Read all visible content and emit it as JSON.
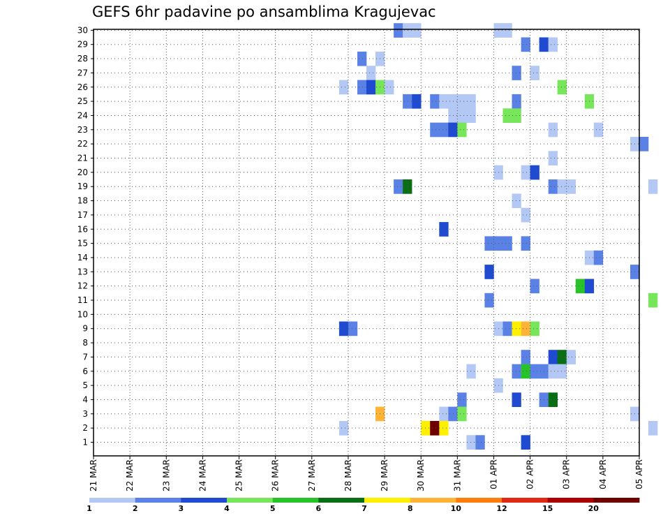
{
  "chart_data": {
    "type": "heatmap",
    "title": "GEFS 6hr padavine po ansamblima Kragujevac",
    "x_labels": [
      "21 MAR",
      "22 MAR",
      "23 MAR",
      "24 MAR",
      "25 MAR",
      "26 MAR",
      "27 MAR",
      "28 MAR",
      "29 MAR",
      "30 MAR",
      "31 MAR",
      "01 APR",
      "02 APR",
      "03 APR",
      "04 APR",
      "05 APR"
    ],
    "y_labels": [
      "1",
      "2",
      "3",
      "4",
      "5",
      "6",
      "7",
      "8",
      "9",
      "10",
      "11",
      "12",
      "13",
      "14",
      "15",
      "16",
      "17",
      "18",
      "19",
      "20",
      "21",
      "22",
      "23",
      "24",
      "25",
      "26",
      "27",
      "28",
      "29",
      "30"
    ],
    "grid": true,
    "legend": {
      "labels": [
        "1",
        "2",
        "3",
        "4",
        "5",
        "6",
        "7",
        "8",
        "10",
        "12",
        "15",
        "20"
      ],
      "colors": [
        "#b4c8f5",
        "#5a82e6",
        "#1e4bd2",
        "#78e65a",
        "#28c328",
        "#0a6e14",
        "#fff000",
        "#ffb437",
        "#ff7d0a",
        "#e12814",
        "#aa0000",
        "#6e0000"
      ]
    },
    "cells": [
      {
        "day": 8.25,
        "member": 30,
        "value": 2
      },
      {
        "day": 8.5,
        "member": 30,
        "value": 1
      },
      {
        "day": 8.75,
        "member": 30,
        "value": 1
      },
      {
        "day": 11,
        "member": 30,
        "value": 1
      },
      {
        "day": 11.25,
        "member": 30,
        "value": 1
      },
      {
        "day": 11.75,
        "member": 29,
        "value": 2
      },
      {
        "day": 12.25,
        "member": 29,
        "value": 3
      },
      {
        "day": 12.5,
        "member": 29,
        "value": 1
      },
      {
        "day": 7.25,
        "member": 28,
        "value": 2
      },
      {
        "day": 7.75,
        "member": 28,
        "value": 1
      },
      {
        "day": 7.5,
        "member": 27,
        "value": 1
      },
      {
        "day": 11.5,
        "member": 27,
        "value": 2
      },
      {
        "day": 12,
        "member": 27,
        "value": 1
      },
      {
        "day": 6.75,
        "member": 26,
        "value": 1
      },
      {
        "day": 7.25,
        "member": 26,
        "value": 2
      },
      {
        "day": 7.5,
        "member": 26,
        "value": 3
      },
      {
        "day": 7.75,
        "member": 26,
        "value": 4
      },
      {
        "day": 8,
        "member": 26,
        "value": 1
      },
      {
        "day": 12.75,
        "member": 26,
        "value": 4
      },
      {
        "day": 8.5,
        "member": 25,
        "value": 2
      },
      {
        "day": 8.75,
        "member": 25,
        "value": 3
      },
      {
        "day": 9.25,
        "member": 25,
        "value": 2
      },
      {
        "day": 9.5,
        "member": 25,
        "value": 1
      },
      {
        "day": 9.75,
        "member": 25,
        "value": 1
      },
      {
        "day": 10,
        "member": 25,
        "value": 1
      },
      {
        "day": 10.25,
        "member": 25,
        "value": 1
      },
      {
        "day": 11.5,
        "member": 25,
        "value": 2
      },
      {
        "day": 13.5,
        "member": 25,
        "value": 4
      },
      {
        "day": 9.75,
        "member": 24,
        "value": 1
      },
      {
        "day": 10,
        "member": 24,
        "value": 1
      },
      {
        "day": 10.25,
        "member": 24,
        "value": 1
      },
      {
        "day": 11.25,
        "member": 24,
        "value": 4
      },
      {
        "day": 11.5,
        "member": 24,
        "value": 4
      },
      {
        "day": 9.25,
        "member": 23,
        "value": 2
      },
      {
        "day": 9.5,
        "member": 23,
        "value": 2
      },
      {
        "day": 9.75,
        "member": 23,
        "value": 3
      },
      {
        "day": 10,
        "member": 23,
        "value": 4
      },
      {
        "day": 12.5,
        "member": 23,
        "value": 1
      },
      {
        "day": 13.75,
        "member": 23,
        "value": 1
      },
      {
        "day": 14.75,
        "member": 22,
        "value": 1
      },
      {
        "day": 15,
        "member": 22,
        "value": 2
      },
      {
        "day": 12.5,
        "member": 21,
        "value": 1
      },
      {
        "day": 11,
        "member": 20,
        "value": 1
      },
      {
        "day": 11.75,
        "member": 20,
        "value": 1
      },
      {
        "day": 12,
        "member": 20,
        "value": 3
      },
      {
        "day": 8.25,
        "member": 19,
        "value": 2
      },
      {
        "day": 8.5,
        "member": 19,
        "value": 6
      },
      {
        "day": 12.5,
        "member": 19,
        "value": 2
      },
      {
        "day": 12.75,
        "member": 19,
        "value": 1
      },
      {
        "day": 13,
        "member": 19,
        "value": 1
      },
      {
        "day": 15.25,
        "member": 19,
        "value": 1
      },
      {
        "day": 11.5,
        "member": 18,
        "value": 1
      },
      {
        "day": 11.75,
        "member": 17,
        "value": 1
      },
      {
        "day": 9.5,
        "member": 16,
        "value": 3
      },
      {
        "day": 10.75,
        "member": 15,
        "value": 2
      },
      {
        "day": 11,
        "member": 15,
        "value": 2
      },
      {
        "day": 11.25,
        "member": 15,
        "value": 2
      },
      {
        "day": 11.75,
        "member": 15,
        "value": 2
      },
      {
        "day": 13.5,
        "member": 14,
        "value": 1
      },
      {
        "day": 13.75,
        "member": 14,
        "value": 2
      },
      {
        "day": 10.75,
        "member": 13,
        "value": 3
      },
      {
        "day": 14.75,
        "member": 13,
        "value": 2
      },
      {
        "day": 12,
        "member": 12,
        "value": 2
      },
      {
        "day": 13.25,
        "member": 12,
        "value": 5
      },
      {
        "day": 13.5,
        "member": 12,
        "value": 3
      },
      {
        "day": 10.75,
        "member": 11,
        "value": 2
      },
      {
        "day": 15.25,
        "member": 11,
        "value": 4
      },
      {
        "day": 6.75,
        "member": 9,
        "value": 3
      },
      {
        "day": 7,
        "member": 9,
        "value": 2
      },
      {
        "day": 11,
        "member": 9,
        "value": 1
      },
      {
        "day": 11.25,
        "member": 9,
        "value": 2
      },
      {
        "day": 11.5,
        "member": 9,
        "value": 7
      },
      {
        "day": 11.75,
        "member": 9,
        "value": 8
      },
      {
        "day": 12,
        "member": 9,
        "value": 4
      },
      {
        "day": 11.75,
        "member": 7,
        "value": 2
      },
      {
        "day": 12.5,
        "member": 7,
        "value": 3
      },
      {
        "day": 12.75,
        "member": 7,
        "value": 6
      },
      {
        "day": 13,
        "member": 7,
        "value": 1
      },
      {
        "day": 10.25,
        "member": 6,
        "value": 1
      },
      {
        "day": 11.5,
        "member": 6,
        "value": 2
      },
      {
        "day": 11.75,
        "member": 6,
        "value": 5
      },
      {
        "day": 12,
        "member": 6,
        "value": 2
      },
      {
        "day": 12.25,
        "member": 6,
        "value": 2
      },
      {
        "day": 12.5,
        "member": 6,
        "value": 1
      },
      {
        "day": 12.75,
        "member": 6,
        "value": 1
      },
      {
        "day": 11,
        "member": 5,
        "value": 1
      },
      {
        "day": 10,
        "member": 4,
        "value": 2
      },
      {
        "day": 11.5,
        "member": 4,
        "value": 3
      },
      {
        "day": 12.25,
        "member": 4,
        "value": 2
      },
      {
        "day": 12.5,
        "member": 4,
        "value": 6
      },
      {
        "day": 7.75,
        "member": 3,
        "value": 8
      },
      {
        "day": 9.5,
        "member": 3,
        "value": 1
      },
      {
        "day": 9.75,
        "member": 3,
        "value": 2
      },
      {
        "day": 10,
        "member": 3,
        "value": 4
      },
      {
        "day": 14.75,
        "member": 3,
        "value": 1
      },
      {
        "day": 6.75,
        "member": 2,
        "value": 1
      },
      {
        "day": 9,
        "member": 2,
        "value": 7
      },
      {
        "day": 9.25,
        "member": 2,
        "value": 20
      },
      {
        "day": 9.5,
        "member": 2,
        "value": 7
      },
      {
        "day": 15.25,
        "member": 2,
        "value": 1
      },
      {
        "day": 10.25,
        "member": 1,
        "value": 1
      },
      {
        "day": 10.5,
        "member": 1,
        "value": 2
      },
      {
        "day": 11.75,
        "member": 1,
        "value": 3
      }
    ]
  }
}
